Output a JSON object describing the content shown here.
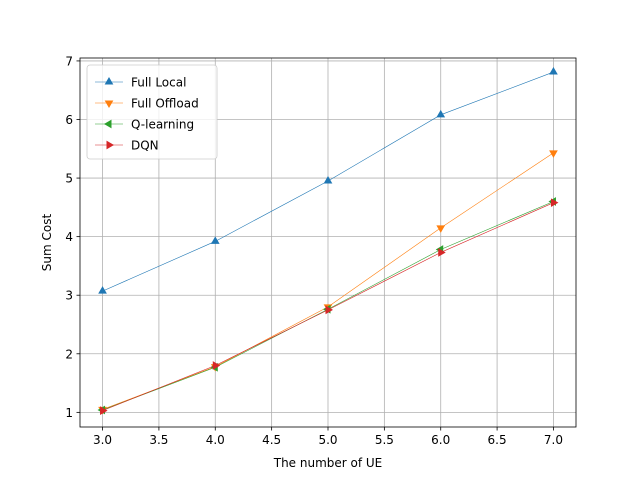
{
  "chart_data": {
    "type": "line",
    "title": "",
    "xlabel": "The number of UE",
    "ylabel": "Sum Cost",
    "x": [
      3.0,
      4.0,
      5.0,
      6.0,
      7.0
    ],
    "xlim": [
      2.8,
      7.2
    ],
    "ylim": [
      0.75,
      7.05
    ],
    "xticks": [
      3.0,
      3.5,
      4.0,
      4.5,
      5.0,
      5.5,
      6.0,
      6.5,
      7.0
    ],
    "xtick_labels": [
      "3.0",
      "3.5",
      "4.0",
      "4.5",
      "5.0",
      "5.5",
      "6.0",
      "6.5",
      "7.0"
    ],
    "yticks": [
      1,
      2,
      3,
      4,
      5,
      6,
      7
    ],
    "ytick_labels": [
      "1",
      "2",
      "3",
      "4",
      "5",
      "6",
      "7"
    ],
    "grid": true,
    "legend_position": "top-left",
    "series": [
      {
        "name": "Full Local",
        "color": "#1f77b4",
        "marker": "triangle-up",
        "values": [
          3.07,
          3.92,
          4.95,
          6.08,
          6.81
        ]
      },
      {
        "name": "Full Offload",
        "color": "#ff7f0e",
        "marker": "triangle-down",
        "values": [
          1.05,
          1.78,
          2.8,
          4.15,
          5.43
        ]
      },
      {
        "name": "Q-learning",
        "color": "#2ca02c",
        "marker": "triangle-left",
        "values": [
          1.04,
          1.77,
          2.76,
          3.78,
          4.6
        ]
      },
      {
        "name": "DQN",
        "color": "#d62728",
        "marker": "triangle-right",
        "values": [
          1.03,
          1.8,
          2.75,
          3.73,
          4.58
        ]
      }
    ]
  }
}
